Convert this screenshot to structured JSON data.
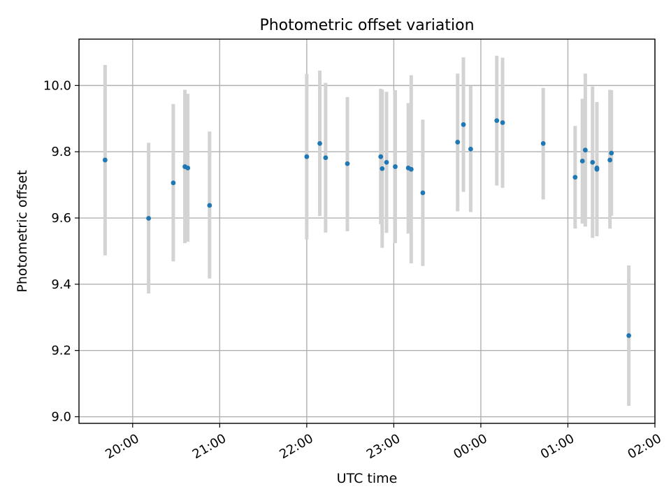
{
  "chart_data": {
    "type": "scatter",
    "title": "Photometric offset variation",
    "xlabel": "UTC time",
    "ylabel": "Photometric offset",
    "x_is_time": true,
    "xlim": [
      "19:23",
      "26:00"
    ],
    "ylim": [
      8.98,
      10.14
    ],
    "x_ticks": [
      {
        "t": "20:00",
        "label": "20:00"
      },
      {
        "t": "21:00",
        "label": "21:00"
      },
      {
        "t": "22:00",
        "label": "22:00"
      },
      {
        "t": "23:00",
        "label": "23:00"
      },
      {
        "t": "24:00",
        "label": "00:00"
      },
      {
        "t": "25:00",
        "label": "01:00"
      },
      {
        "t": "26:00",
        "label": "02:00"
      }
    ],
    "y_ticks": [
      {
        "v": 9.0,
        "label": "9.0"
      },
      {
        "v": 9.2,
        "label": "9.2"
      },
      {
        "v": 9.4,
        "label": "9.4"
      },
      {
        "v": 9.6,
        "label": "9.6"
      },
      {
        "v": 9.8,
        "label": "9.8"
      },
      {
        "v": 10.0,
        "label": "10.0"
      }
    ],
    "grid": true,
    "colors": {
      "marker": "#1f77b4",
      "errorbar": "#d3d3d3"
    },
    "series": [
      {
        "points": [
          {
            "t": "19:41",
            "y": 9.775,
            "lo": 9.487,
            "hi": 10.062
          },
          {
            "t": "20:11",
            "y": 9.599,
            "lo": 9.372,
            "hi": 9.827
          },
          {
            "t": "20:28",
            "y": 9.706,
            "lo": 9.469,
            "hi": 9.944
          },
          {
            "t": "20:36",
            "y": 9.755,
            "lo": 9.524,
            "hi": 9.987
          },
          {
            "t": "20:38",
            "y": 9.751,
            "lo": 9.528,
            "hi": 9.975
          },
          {
            "t": "20:53",
            "y": 9.638,
            "lo": 9.417,
            "hi": 9.861
          },
          {
            "t": "22:00",
            "y": 9.785,
            "lo": 9.535,
            "hi": 10.035
          },
          {
            "t": "22:09",
            "y": 9.825,
            "lo": 9.606,
            "hi": 10.045
          },
          {
            "t": "22:13",
            "y": 9.782,
            "lo": 9.556,
            "hi": 10.008
          },
          {
            "t": "22:28",
            "y": 9.764,
            "lo": 9.56,
            "hi": 9.965
          },
          {
            "t": "22:51",
            "y": 9.785,
            "lo": 9.581,
            "hi": 9.99
          },
          {
            "t": "22:52",
            "y": 9.749,
            "lo": 9.51,
            "hi": 9.987
          },
          {
            "t": "22:55",
            "y": 9.768,
            "lo": 9.555,
            "hi": 9.981
          },
          {
            "t": "23:01",
            "y": 9.755,
            "lo": 9.524,
            "hi": 9.986
          },
          {
            "t": "23:10",
            "y": 9.751,
            "lo": 9.553,
            "hi": 9.947
          },
          {
            "t": "23:12",
            "y": 9.747,
            "lo": 9.463,
            "hi": 10.031
          },
          {
            "t": "23:20",
            "y": 9.676,
            "lo": 9.455,
            "hi": 9.897
          },
          {
            "t": "23:44",
            "y": 9.829,
            "lo": 9.62,
            "hi": 10.036
          },
          {
            "t": "23:48",
            "y": 9.882,
            "lo": 9.679,
            "hi": 10.085
          },
          {
            "t": "23:53",
            "y": 9.808,
            "lo": 9.618,
            "hi": 9.999
          },
          {
            "t": "24:11",
            "y": 9.894,
            "lo": 9.698,
            "hi": 10.09
          },
          {
            "t": "24:15",
            "y": 9.888,
            "lo": 9.691,
            "hi": 10.084
          },
          {
            "t": "24:43",
            "y": 9.825,
            "lo": 9.656,
            "hi": 9.993
          },
          {
            "t": "25:05",
            "y": 9.723,
            "lo": 9.568,
            "hi": 9.878
          },
          {
            "t": "25:10",
            "y": 9.772,
            "lo": 9.583,
            "hi": 9.96
          },
          {
            "t": "25:12",
            "y": 9.805,
            "lo": 9.574,
            "hi": 10.036
          },
          {
            "t": "25:17",
            "y": 9.768,
            "lo": 9.54,
            "hi": 9.997
          },
          {
            "t": "25:20",
            "y": 9.751,
            "lo": 9.552,
            "hi": 9.95
          },
          {
            "t": "25:20",
            "y": 9.747,
            "lo": 9.545,
            "hi": 9.948
          },
          {
            "t": "25:29",
            "y": 9.775,
            "lo": 9.568,
            "hi": 9.987
          },
          {
            "t": "25:30",
            "y": 9.796,
            "lo": 9.607,
            "hi": 9.986
          },
          {
            "t": "25:42",
            "y": 9.245,
            "lo": 9.033,
            "hi": 9.457
          }
        ]
      }
    ]
  }
}
